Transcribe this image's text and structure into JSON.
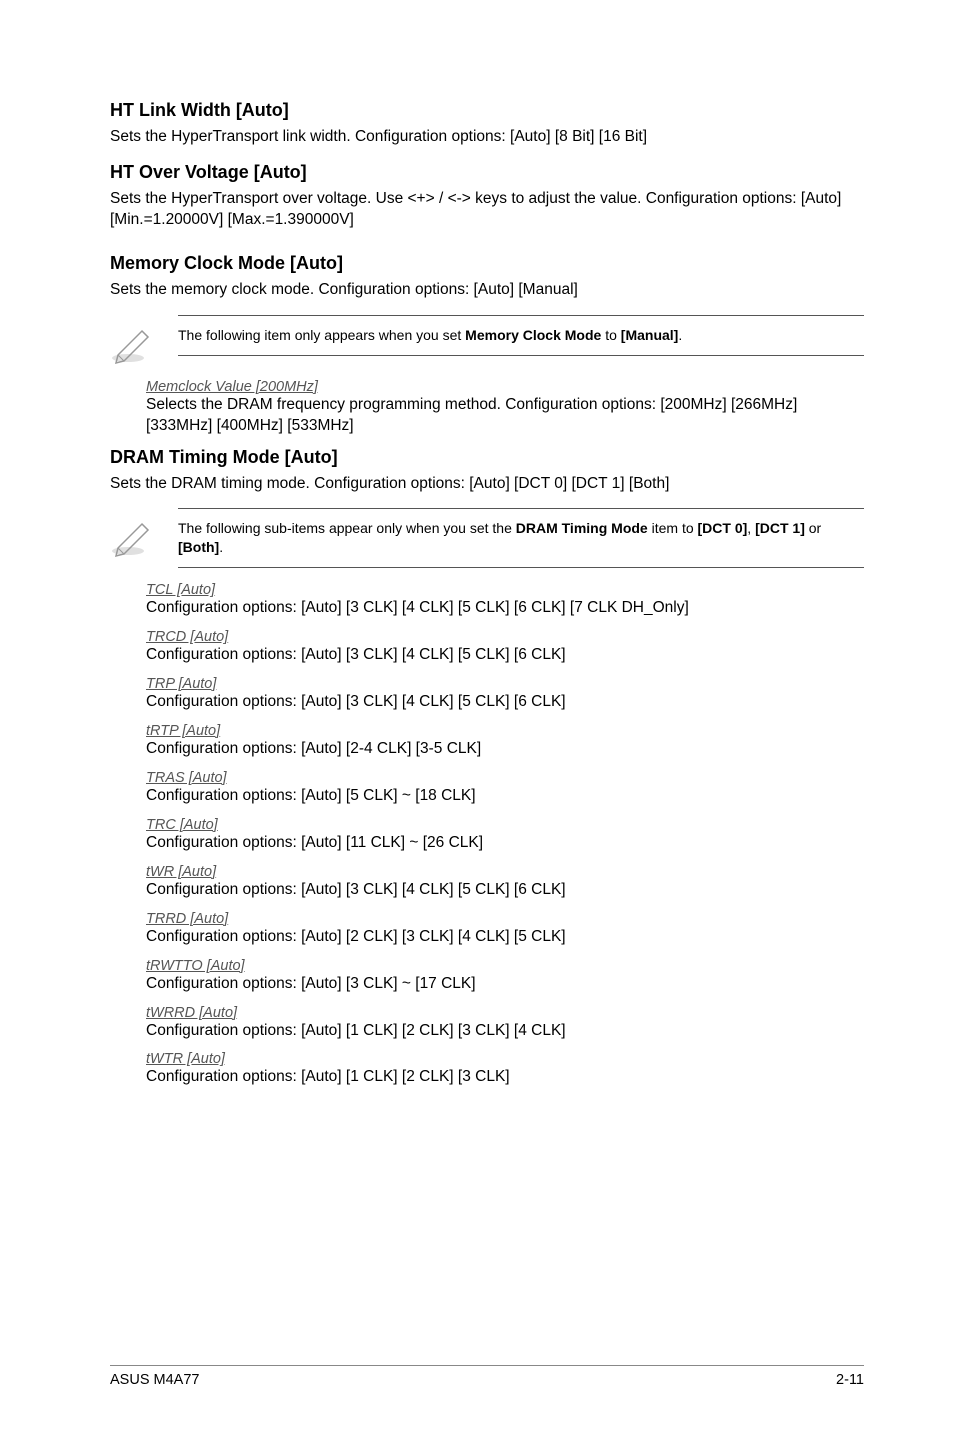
{
  "colors": {
    "text": "#000000",
    "subheading": "#555555",
    "rule": "#555555",
    "background": "#ffffff"
  },
  "typography": {
    "h2_size_pt": 13,
    "body_size_pt": 11.5,
    "note_size_pt": 10.5,
    "sub_heading_style": "italic underline"
  },
  "sections": {
    "htLinkWidth": {
      "title": "HT Link Width [Auto]",
      "body": "Sets the HyperTransport link width. Configuration options: [Auto] [8 Bit] [16 Bit]"
    },
    "htOverVoltage": {
      "title": "HT Over Voltage [Auto]",
      "body": "Sets the HyperTransport over voltage. Use <+> / <-> keys to adjust the value. Configuration options: [Auto] [Min.=1.20000V] [Max.=1.390000V]"
    },
    "memClockMode": {
      "title": "Memory Clock Mode [Auto]",
      "body": "Sets the memory clock mode. Configuration options: [Auto] [Manual]"
    },
    "dramTimingMode": {
      "title": "DRAM Timing Mode [Auto]",
      "body": "Sets the DRAM timing mode. Configuration options: [Auto] [DCT 0] [DCT 1] [Both]"
    }
  },
  "notes": {
    "note1_pre": "The following item only appears when you set ",
    "note1_bold": "Memory Clock Mode",
    "note1_mid": " to ",
    "note1_bold2": "[Manual]",
    "note1_post": ".",
    "note2_pre": "The following sub-items appear only when you set the ",
    "note2_bold": "DRAM Timing Mode",
    "note2_mid": " item to ",
    "note2_b1": "[DCT 0]",
    "note2_s1": ", ",
    "note2_b2": "[DCT 1]",
    "note2_s2": " or ",
    "note2_b3": "[Both]",
    "note2_post": "."
  },
  "memclock": {
    "heading": "Memclock Value [200MHz]",
    "body": "Selects the DRAM frequency programming method. Configuration options: [200MHz] [266MHz] [333MHz] [400MHz] [533MHz]"
  },
  "dramItems": [
    {
      "heading": "TCL [Auto]",
      "body": "Configuration options: [Auto] [3 CLK] [4 CLK] [5 CLK] [6 CLK] [7 CLK DH_Only]"
    },
    {
      "heading": "TRCD [Auto]",
      "body": "Configuration options: [Auto] [3 CLK] [4 CLK] [5 CLK] [6 CLK]"
    },
    {
      "heading": "TRP [Auto]",
      "body": "Configuration options: [Auto] [3 CLK] [4 CLK] [5 CLK] [6 CLK]"
    },
    {
      "heading": "tRTP [Auto]",
      "body": "Configuration options: [Auto] [2-4 CLK] [3-5 CLK]"
    },
    {
      "heading": "TRAS [Auto]",
      "body": "Configuration options: [Auto] [5 CLK] ~ [18 CLK]"
    },
    {
      "heading": "TRC [Auto]",
      "body": "Configuration options: [Auto] [11 CLK] ~ [26 CLK]"
    },
    {
      "heading": "tWR [Auto]",
      "body": "Configuration options: [Auto] [3 CLK] [4 CLK] [5 CLK] [6 CLK]"
    },
    {
      "heading": "TRRD [Auto]",
      "body": "Configuration options: [Auto] [2 CLK] [3 CLK] [4 CLK] [5 CLK]"
    },
    {
      "heading": "tRWTTO [Auto]",
      "body": "Configuration options: [Auto] [3 CLK] ~ [17 CLK]"
    },
    {
      "heading": "tWRRD [Auto]",
      "body": "Configuration options: [Auto] [1 CLK] [2 CLK] [3 CLK] [4 CLK]"
    },
    {
      "heading": "tWTR [Auto]",
      "body": "Configuration options: [Auto] [1 CLK] [2 CLK] [3 CLK]"
    }
  ],
  "footer": {
    "left": "ASUS M4A77",
    "right": "2-11"
  }
}
